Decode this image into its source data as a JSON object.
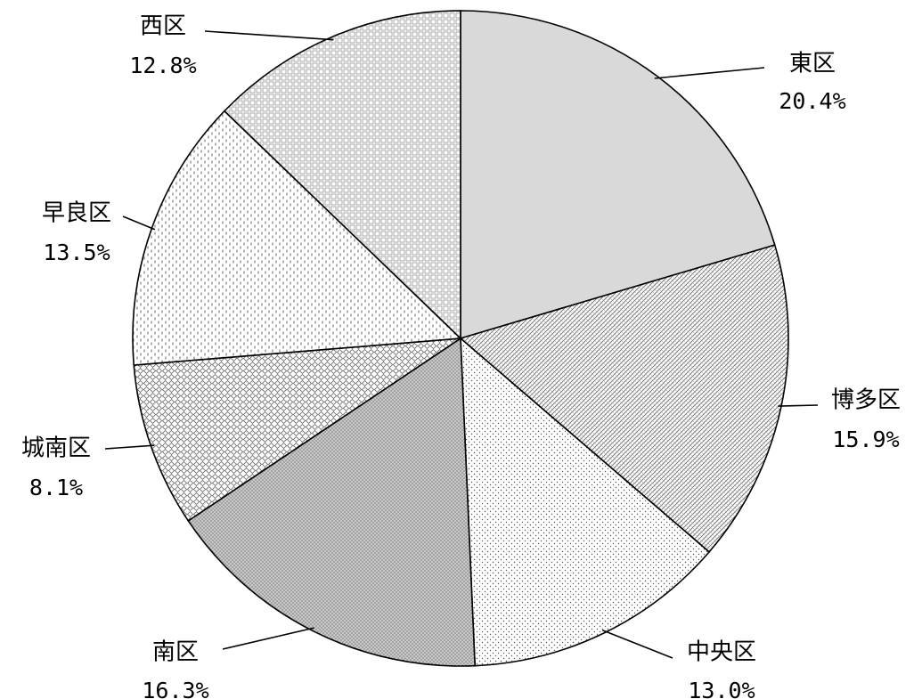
{
  "chart_data": {
    "type": "pie",
    "start_angle_deg": 90,
    "direction": "clockwise",
    "slices": [
      {
        "label": "東区",
        "value": 20.4,
        "value_label": "20.4%",
        "pattern": "solid-gray"
      },
      {
        "label": "博多区",
        "value": 15.9,
        "value_label": "15.9%",
        "pattern": "diagonal-hatch"
      },
      {
        "label": "中央区",
        "value": 13.0,
        "value_label": "13.0%",
        "pattern": "sparse-dots"
      },
      {
        "label": "南区",
        "value": 16.3,
        "value_label": "16.3%",
        "pattern": "dense-dots"
      },
      {
        "label": "城南区",
        "value": 8.1,
        "value_label": "8.1%",
        "pattern": "diamond-mesh"
      },
      {
        "label": "早良区",
        "value": 13.5,
        "value_label": "13.5%",
        "pattern": "vertical-dashes"
      },
      {
        "label": "西区",
        "value": 12.8,
        "value_label": "12.8%",
        "pattern": "square-grid"
      }
    ]
  },
  "colors": {
    "stroke": "#000000",
    "solid_fill": "#d9d9d9",
    "pattern_ink": "#555555",
    "background": "#ffffff"
  }
}
